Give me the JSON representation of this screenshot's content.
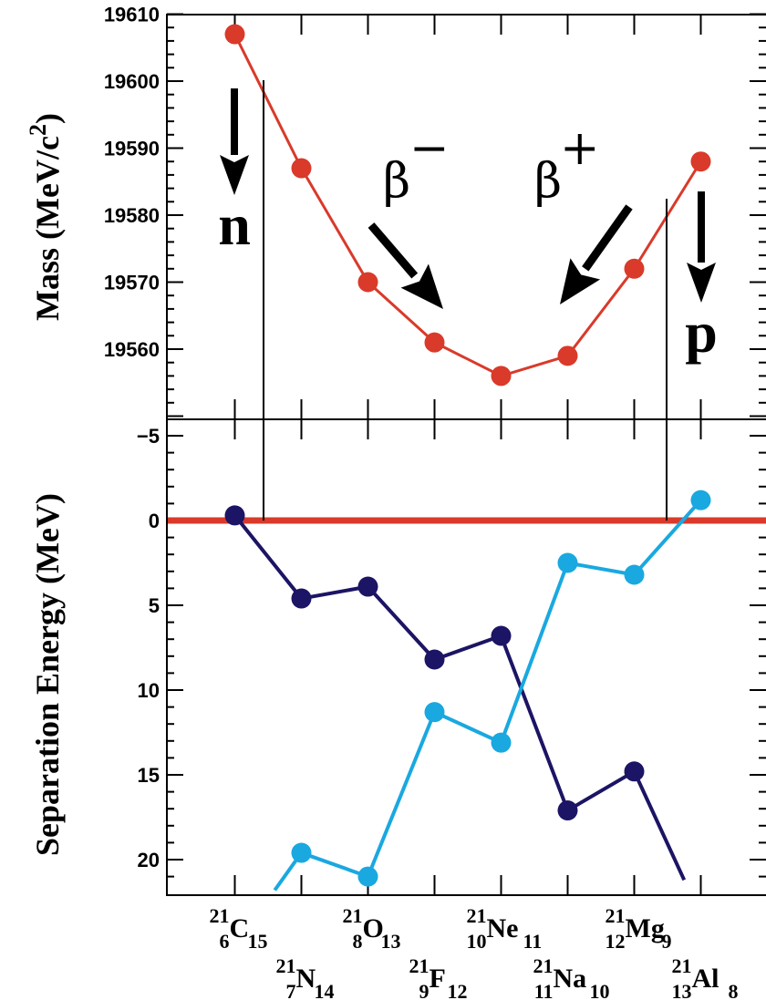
{
  "chart_data": [
    {
      "type": "line",
      "ylabel": "Mass (MeV/c",
      "ylabel_sup": "2",
      "ylabel_close": ")",
      "ylim": [
        19548,
        19610
      ],
      "y_ticks": [
        "19560",
        "19570",
        "19580",
        "19590",
        "19600",
        "19610"
      ],
      "series": [
        {
          "color": "#d93a2a",
          "x": [
            6,
            7,
            8,
            9,
            10,
            11,
            12,
            13
          ],
          "values": [
            19607,
            19587,
            19570,
            19561,
            19556,
            19559,
            19572,
            19588
          ]
        }
      ],
      "annotations": {
        "n": "n",
        "p": "p",
        "beta_minus": "β",
        "beta_plus": "β",
        "minus": "−",
        "plus": "+"
      }
    },
    {
      "type": "line",
      "ylabel": "Separation Energy (MeV)",
      "ylim_inverted": [
        -6,
        22
      ],
      "y_ticks": [
        "−5",
        "0",
        "5",
        "10",
        "15",
        "20"
      ],
      "zero_line_color": "#d93a2a",
      "series": [
        {
          "color": "#1c1464",
          "x": [
            6,
            7,
            8,
            9,
            10,
            11,
            12,
            12.75
          ],
          "values": [
            -0.3,
            4.6,
            3.9,
            8.2,
            6.8,
            17.1,
            14.8,
            21.2
          ]
        },
        {
          "color": "#1aa8e0",
          "x": [
            6.6,
            7,
            8,
            9,
            10,
            11,
            12,
            13
          ],
          "values": [
            21.8,
            19.6,
            21.0,
            11.3,
            13.1,
            2.5,
            3.2,
            -1.2
          ]
        }
      ]
    }
  ],
  "nuclides": [
    {
      "A": "21",
      "Z": "6",
      "sym": "C",
      "N": "15"
    },
    {
      "A": "21",
      "Z": "7",
      "sym": "N",
      "N": "14"
    },
    {
      "A": "21",
      "Z": "8",
      "sym": "O",
      "N": "13"
    },
    {
      "A": "21",
      "Z": "9",
      "sym": "F",
      "N": "12"
    },
    {
      "A": "21",
      "Z": "10",
      "sym": "Ne",
      "N": "11"
    },
    {
      "A": "21",
      "Z": "11",
      "sym": "Na",
      "N": "10"
    },
    {
      "A": "21",
      "Z": "12",
      "sym": "Mg",
      "N": "9"
    },
    {
      "A": "21",
      "Z": "13",
      "sym": "Al",
      "N": "8"
    }
  ],
  "colors": {
    "axis": "#000000",
    "mass": "#d93a2a",
    "sn": "#1c1464",
    "sp": "#1aa8e0"
  }
}
